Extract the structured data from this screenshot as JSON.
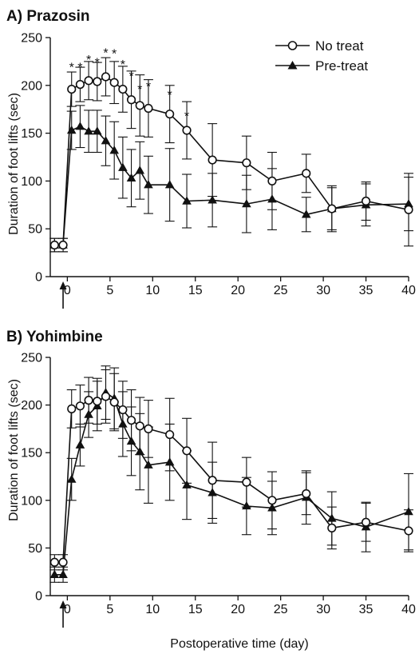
{
  "figure": {
    "xlabel": "Postoperative time (day)",
    "legend": {
      "no_treat": "No treat",
      "pre_treat": "Pre-treat"
    },
    "colors": {
      "ink": "#111111",
      "background": "#ffffff"
    }
  },
  "chart_data": [
    {
      "type": "line",
      "title": "A) Prazosin",
      "xlabel": "",
      "ylabel": "Duration of foot lifts (sec)",
      "xlim": [
        -2,
        40
      ],
      "ylim": [
        0,
        250
      ],
      "xticks": [
        0,
        5,
        10,
        15,
        20,
        25,
        30,
        35,
        40
      ],
      "yticks": [
        0,
        50,
        100,
        150,
        200,
        250
      ],
      "grid": false,
      "legend_position": "top-right",
      "marker_arrow_at_x": -0.5,
      "series": [
        {
          "name": "No treat",
          "marker": "open-circle",
          "x": [
            -1.5,
            -0.5,
            0.5,
            1.5,
            2.5,
            3.5,
            4.5,
            5.5,
            6.5,
            7.5,
            8.5,
            9.5,
            12,
            14,
            17,
            21,
            24,
            28,
            31,
            35,
            40
          ],
          "y": [
            33,
            33,
            196,
            201,
            205,
            204,
            209,
            203,
            196,
            185,
            179,
            176,
            170,
            153,
            122,
            119,
            100,
            108,
            71,
            79,
            70
          ],
          "err": [
            7,
            7,
            18,
            18,
            20,
            20,
            20,
            22,
            24,
            30,
            32,
            30,
            30,
            30,
            38,
            28,
            30,
            20,
            22,
            20,
            38
          ]
        },
        {
          "name": "Pre-treat",
          "marker": "filled-triangle",
          "x": [
            -1.5,
            -0.5,
            0.5,
            1.5,
            2.5,
            3.5,
            4.5,
            5.5,
            6.5,
            7.5,
            8.5,
            9.5,
            12,
            14,
            17,
            21,
            24,
            28,
            31,
            35,
            40
          ],
          "y": [
            33,
            33,
            153,
            157,
            152,
            152,
            142,
            132,
            114,
            103,
            111,
            96,
            96,
            79,
            80,
            76,
            81,
            65,
            71,
            75,
            76
          ],
          "err": [
            7,
            7,
            20,
            22,
            22,
            22,
            26,
            30,
            32,
            30,
            30,
            30,
            38,
            28,
            28,
            30,
            32,
            18,
            24,
            22,
            28
          ]
        }
      ],
      "significance_markers": [
        {
          "x": 0.5,
          "y": 222,
          "text": "*"
        },
        {
          "x": 1.5,
          "y": 222,
          "text": "*"
        },
        {
          "x": 2.5,
          "y": 230,
          "text": "*"
        },
        {
          "x": 3.5,
          "y": 227,
          "text": "*"
        },
        {
          "x": 4.5,
          "y": 237,
          "text": "*"
        },
        {
          "x": 5.5,
          "y": 236,
          "text": "*"
        },
        {
          "x": 6.5,
          "y": 225,
          "text": "*"
        },
        {
          "x": 7.5,
          "y": 213,
          "text": "*"
        },
        {
          "x": 8.5,
          "y": 199,
          "text": "*"
        },
        {
          "x": 9.5,
          "y": 202,
          "text": "*"
        },
        {
          "x": 12,
          "y": 193,
          "text": "*"
        },
        {
          "x": 14,
          "y": 171,
          "text": "*"
        }
      ]
    },
    {
      "type": "line",
      "title": "B) Yohimbine",
      "xlabel": "Postoperative time (day)",
      "ylabel": "Duration of foot lifts (sec)",
      "xlim": [
        -2,
        40
      ],
      "ylim": [
        0,
        250
      ],
      "xticks": [
        0,
        5,
        10,
        15,
        20,
        25,
        30,
        35,
        40
      ],
      "yticks": [
        0,
        50,
        100,
        150,
        200,
        250
      ],
      "grid": false,
      "legend_position": "none",
      "marker_arrow_at_x": -0.5,
      "series": [
        {
          "name": "No treat",
          "marker": "open-circle",
          "x": [
            -1.5,
            -0.5,
            0.5,
            1.5,
            2.5,
            3.5,
            4.5,
            5.5,
            6.5,
            7.5,
            8.5,
            9.5,
            12,
            14,
            17,
            21,
            24,
            28,
            31,
            35,
            40
          ],
          "y": [
            35,
            35,
            196,
            199,
            205,
            204,
            209,
            203,
            195,
            184,
            178,
            175,
            169,
            152,
            121,
            119,
            100,
            107,
            71,
            77,
            68
          ],
          "err": [
            8,
            8,
            20,
            22,
            24,
            24,
            28,
            30,
            30,
            32,
            30,
            30,
            38,
            34,
            40,
            26,
            30,
            22,
            22,
            20,
            22
          ]
        },
        {
          "name": "Pre-treat",
          "marker": "filled-triangle",
          "x": [
            -1.5,
            -0.5,
            0.5,
            1.5,
            2.5,
            3.5,
            4.5,
            5.5,
            6.5,
            7.5,
            8.5,
            9.5,
            12,
            14,
            17,
            21,
            24,
            28,
            31,
            35,
            40
          ],
          "y": [
            22,
            22,
            122,
            158,
            190,
            199,
            213,
            207,
            180,
            162,
            151,
            137,
            140,
            116,
            108,
            94,
            92,
            103,
            81,
            72,
            88
          ],
          "err": [
            8,
            8,
            22,
            22,
            24,
            26,
            28,
            32,
            34,
            36,
            40,
            40,
            40,
            36,
            32,
            30,
            28,
            28,
            28,
            26,
            40
          ]
        }
      ],
      "significance_markers": []
    }
  ]
}
